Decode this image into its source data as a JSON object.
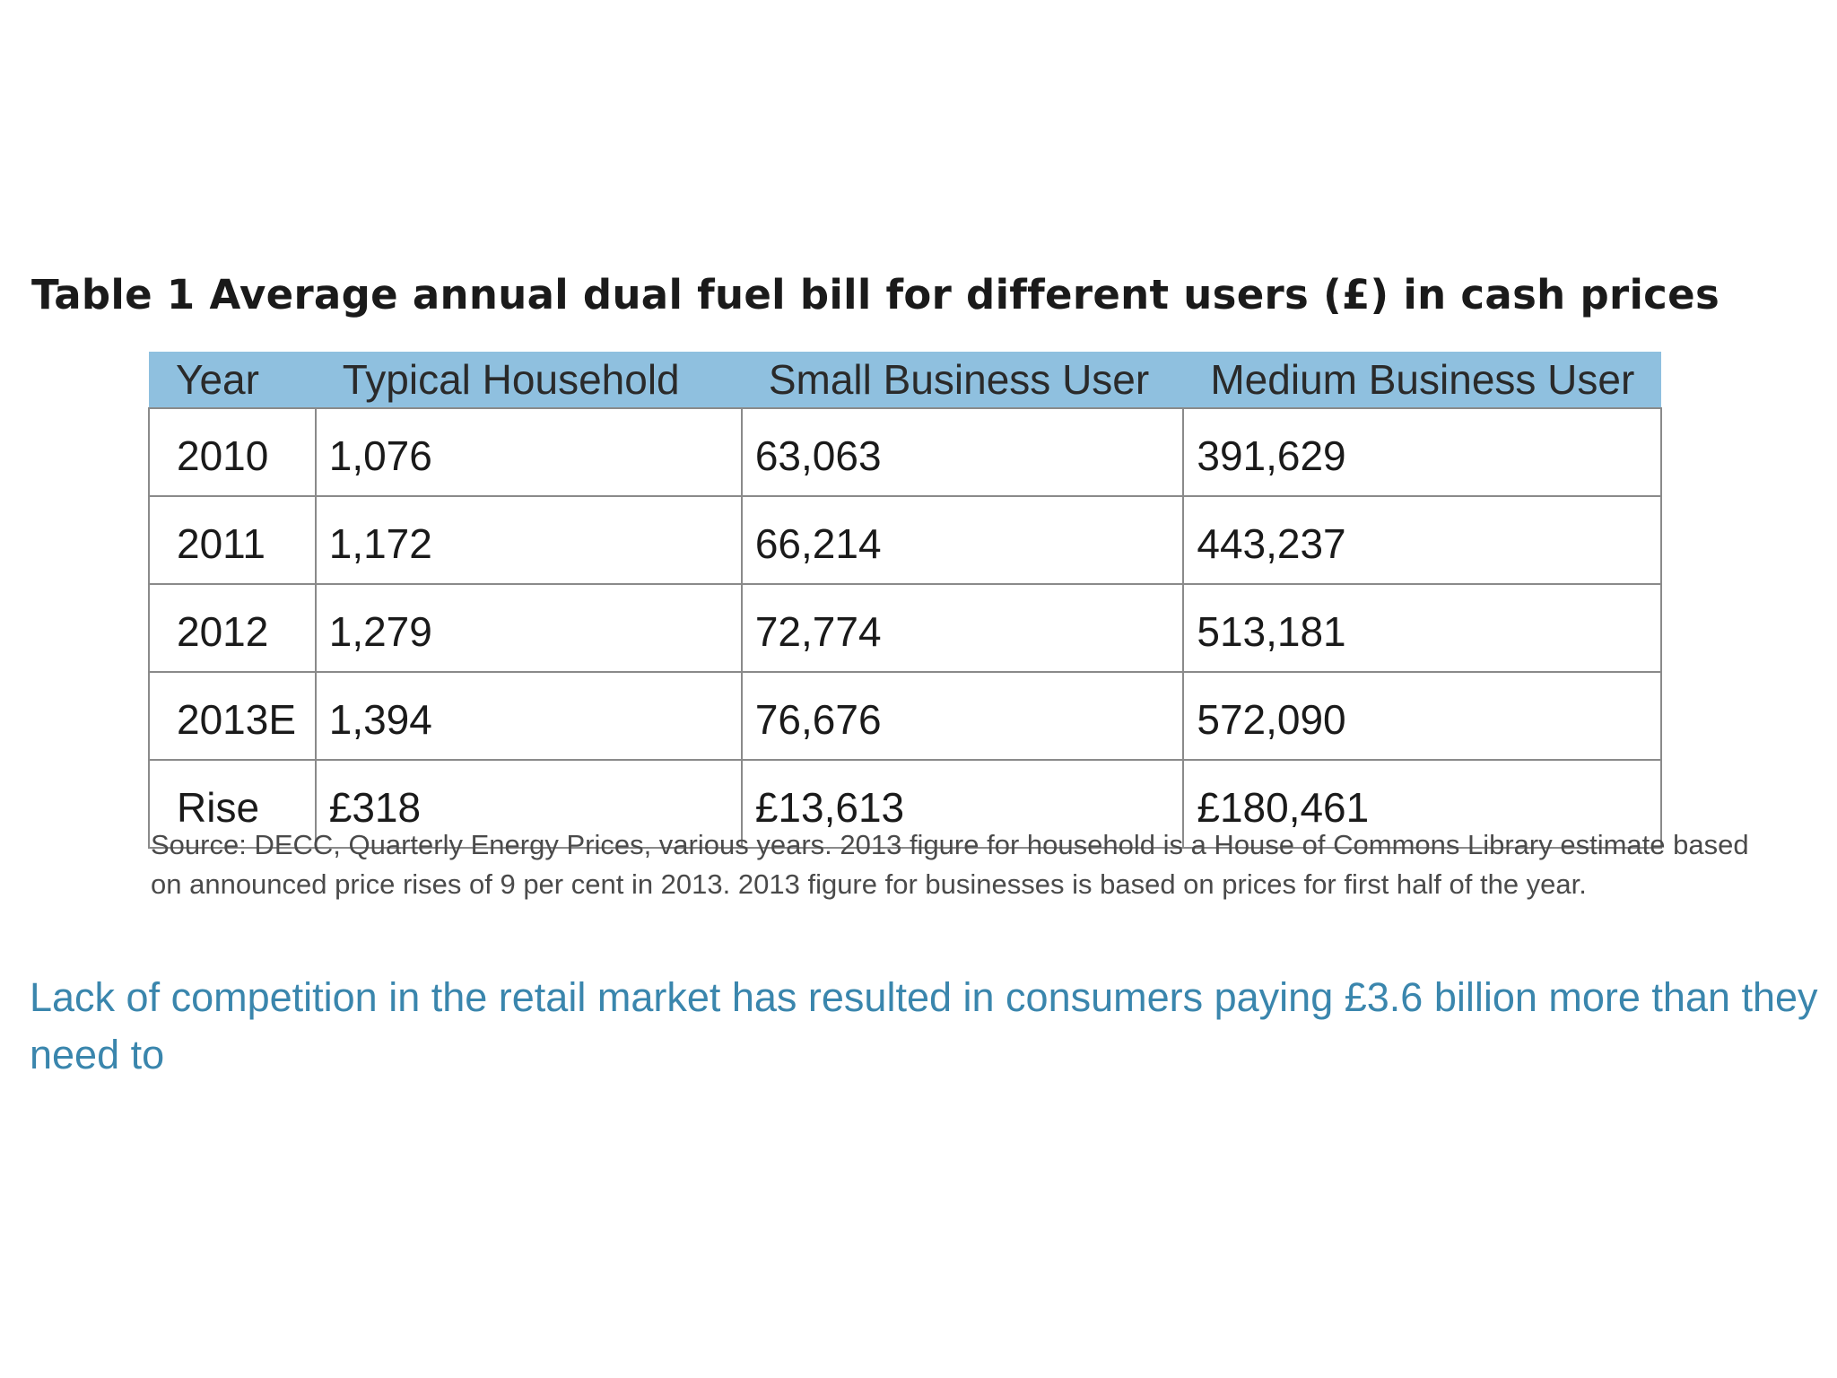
{
  "document": {
    "table_title": "Table 1 Average annual dual fuel bill for different users (£) in cash prices",
    "table": {
      "headers": [
        "Year",
        "Typical Household",
        "Small Business User",
        "Medium Business User"
      ],
      "rows": [
        [
          "2010",
          "1,076",
          "63,063",
          "391,629"
        ],
        [
          "2011",
          "1,172",
          "66,214",
          "443,237"
        ],
        [
          "2012",
          "1,279",
          "72,774",
          "513,181"
        ],
        [
          "2013E",
          "1,394",
          "76,676",
          "572,090"
        ],
        [
          "Rise",
          "£318",
          "£13,613",
          "£180,461"
        ]
      ]
    },
    "source_note": "Source: DECC, Quarterly Energy Prices, various years. 2013 figure for household is a House of Commons Library estimate based on announced price rises of 9 per cent in 2013. 2013 figure for businesses is based on prices for first half of the year.",
    "pull_quote": "Lack of competition in the retail market has resulted in consumers paying £3.6 billion more than they need to"
  },
  "colors": {
    "header_background": "#8fc0df",
    "quote_text": "#3a86ad",
    "border": "#8a8a8a"
  }
}
